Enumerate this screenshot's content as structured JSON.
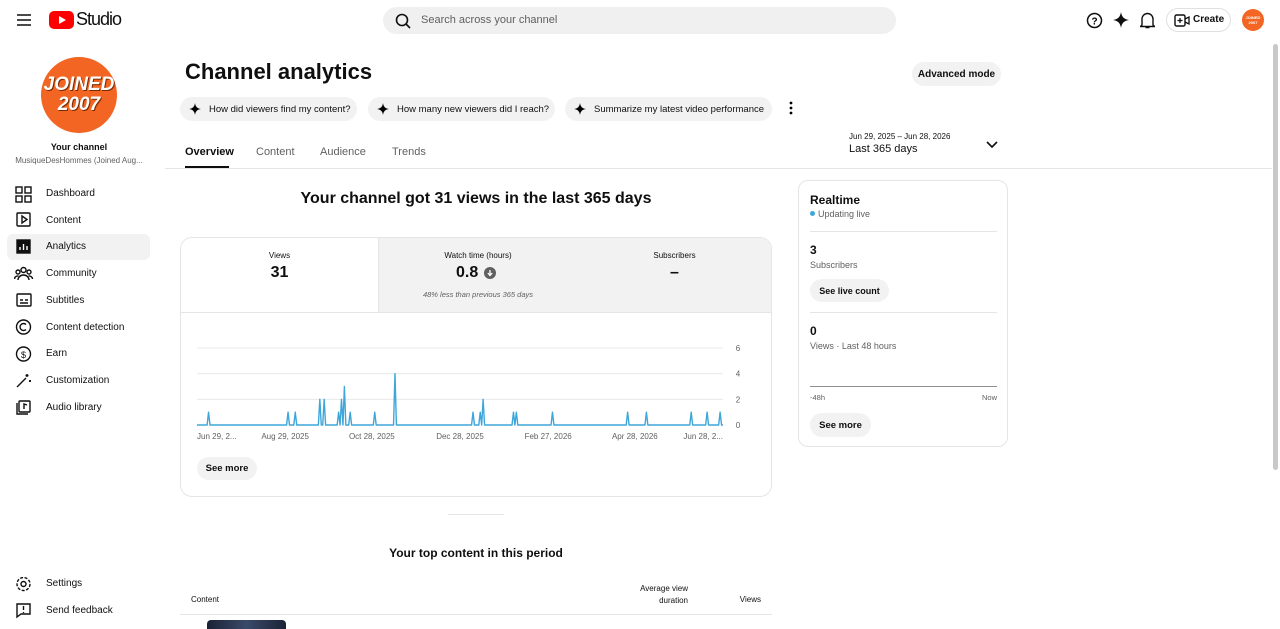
{
  "header": {
    "logo": "Studio",
    "search_placeholder": "Search across your channel",
    "create": "Create",
    "avatar": "JOINED 2007"
  },
  "sidebar": {
    "avatar_lines": [
      "JOINED",
      "2007"
    ],
    "your_channel": "Your channel",
    "channel_name": "MusiqueDesHommes (Joined Aug...",
    "nav": [
      "Dashboard",
      "Content",
      "Analytics",
      "Community",
      "Subtitles",
      "Content detection",
      "Earn",
      "Customization",
      "Audio library"
    ],
    "bottom": [
      "Settings",
      "Send feedback"
    ]
  },
  "page": {
    "title": "Channel analytics",
    "advanced_mode": "Advanced mode",
    "prompts": [
      "How did viewers find my content?",
      "How many new viewers did I reach?",
      "Summarize my latest video performance"
    ],
    "tabs": [
      "Overview",
      "Content",
      "Audience",
      "Trends"
    ],
    "date_range": {
      "dates": "Jun 29, 2025 – Jun 28, 2026",
      "label": "Last 365 days"
    }
  },
  "summary": {
    "headline": "Your channel got 31 views in the last 365 days",
    "cards": [
      {
        "label": "Views",
        "value": 31
      },
      {
        "label": "Watch time (hours)",
        "value": 0.8,
        "note": "48% less than previous 365 days"
      },
      {
        "label": "Subscribers",
        "value": "–"
      }
    ],
    "see_more": "See more"
  },
  "chart_data": {
    "type": "line",
    "color": "#3ea6d9",
    "x": [
      "2025-06-29",
      "2025-07-06",
      "2025-07-07",
      "2025-07-08",
      "2025-08-30",
      "2025-08-31",
      "2025-09-01",
      "2025-09-04",
      "2025-09-05",
      "2025-09-06",
      "2025-09-21",
      "2025-09-22",
      "2025-09-23",
      "2025-09-24",
      "2025-09-25",
      "2025-09-26",
      "2025-10-04",
      "2025-10-05",
      "2025-10-06",
      "2025-10-07",
      "2025-10-08",
      "2025-10-09",
      "2025-10-10",
      "2025-10-12",
      "2025-10-13",
      "2025-10-14",
      "2025-10-29",
      "2025-10-30",
      "2025-10-31",
      "2025-11-12",
      "2025-11-13",
      "2025-11-14",
      "2026-01-05",
      "2026-01-06",
      "2026-01-07",
      "2026-01-10",
      "2026-01-11",
      "2026-01-12",
      "2026-01-13",
      "2026-01-14",
      "2026-02-02",
      "2026-02-03",
      "2026-02-04",
      "2026-02-05",
      "2026-02-06",
      "2026-03-01",
      "2026-03-02",
      "2026-03-03",
      "2026-04-22",
      "2026-04-23",
      "2026-04-24",
      "2026-05-05",
      "2026-05-06",
      "2026-05-07",
      "2026-06-05",
      "2026-06-06",
      "2026-06-07",
      "2026-06-16",
      "2026-06-17",
      "2026-06-18",
      "2026-06-25",
      "2026-06-26",
      "2026-06-27",
      "2026-06-28"
    ],
    "series": [
      {
        "name": "Views",
        "color": "#3ea6d9",
        "values": [
          0,
          0,
          1,
          0,
          0,
          1,
          0,
          0,
          1,
          0,
          0,
          2,
          0,
          0,
          2,
          0,
          0,
          1,
          0,
          2,
          0,
          3,
          0,
          0,
          1,
          0,
          0,
          1,
          0,
          0,
          4,
          0,
          0,
          1,
          0,
          0,
          1,
          0,
          2,
          0,
          0,
          1,
          0,
          1,
          0,
          0,
          1,
          0,
          0,
          1,
          0,
          0,
          1,
          0,
          0,
          1,
          0,
          0,
          1,
          0,
          0,
          1,
          0,
          0
        ]
      }
    ],
    "xlim": [
      "2025-06-29",
      "2026-06-28"
    ],
    "xticks": [
      {
        "value": "2025-06-29",
        "label": "Jun 29, 2..."
      },
      {
        "value": "2025-08-29",
        "label": "Aug 29, 2025"
      },
      {
        "value": "2025-10-28",
        "label": "Oct 28, 2025"
      },
      {
        "value": "2025-12-28",
        "label": "Dec 28, 2025"
      },
      {
        "value": "2026-02-27",
        "label": "Feb 27, 2026"
      },
      {
        "value": "2026-04-28",
        "label": "Apr 28, 2026"
      },
      {
        "value": "2026-06-28",
        "label": "Jun 28, 2..."
      }
    ],
    "ylim": [
      0,
      6
    ],
    "yticks": [
      0,
      2,
      4,
      6
    ],
    "grid": true
  },
  "realtime": {
    "title": "Realtime",
    "status": "Updating live",
    "subscribers": 3,
    "subscribers_label": "Subscribers",
    "see_live_count": "See live count",
    "views": 0,
    "views_label": "Views · Last 48 hours",
    "axis_start": "-48h",
    "axis_end": "Now",
    "see_more": "See more"
  },
  "top_content": {
    "title": "Your top content in this period",
    "columns": [
      "Content",
      "Average view duration",
      "Views"
    ]
  }
}
